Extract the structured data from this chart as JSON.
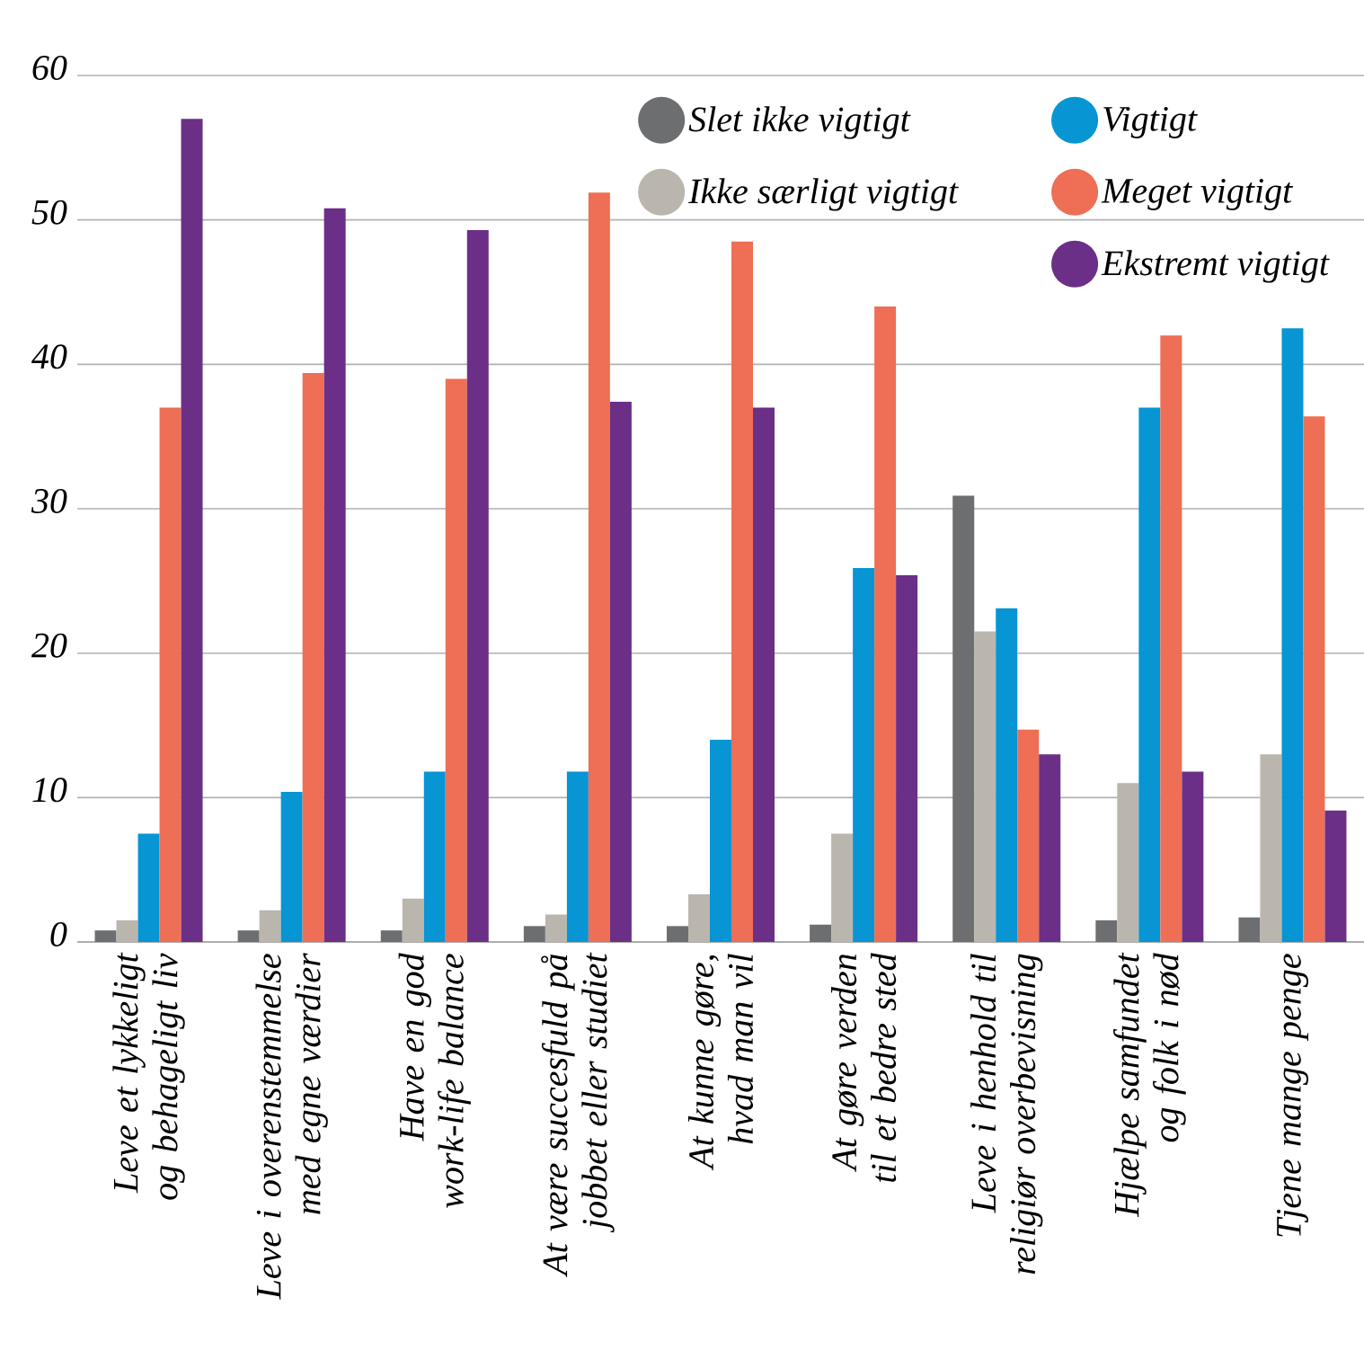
{
  "chart_data": {
    "type": "bar",
    "categories": [
      "Leve et lykkeligt og behageligt liv",
      "Leve i overenstemmelse med egne værdier",
      "Have en god work-life balance",
      "At være succesfuld på jobbet eller studiet",
      "At kunne gøre, hvad man vil",
      "At gøre verden til et bedre sted",
      "Leve i henhold til religiør overbevisning",
      "Hjælpe samfundet og folk i nød",
      "Tjene mange penge"
    ],
    "series": [
      {
        "name": "Slet ikke vigtigt",
        "color": "#6d6e70",
        "values": [
          0.8,
          0.8,
          0.8,
          1.1,
          1.1,
          1.2,
          30.9,
          1.5,
          1.7
        ]
      },
      {
        "name": "Ikke særligt vigtigt",
        "color": "#bab6ae",
        "values": [
          1.5,
          2.2,
          3.0,
          1.9,
          3.3,
          7.5,
          21.5,
          11.0,
          13.0
        ]
      },
      {
        "name": "Vigtigt",
        "color": "#0795d4",
        "values": [
          7.5,
          10.4,
          11.8,
          11.8,
          14.0,
          25.9,
          23.1,
          37.0,
          42.5
        ]
      },
      {
        "name": "Meget vigtigt",
        "color": "#ee6f55",
        "values": [
          37.0,
          39.4,
          39.0,
          51.9,
          48.5,
          44.0,
          14.7,
          42.0,
          36.4
        ]
      },
      {
        "name": "Ekstremt vigtigt",
        "color": "#6b2f87",
        "values": [
          57.0,
          50.8,
          49.3,
          37.4,
          37.0,
          25.4,
          13.0,
          11.8,
          9.1
        ]
      }
    ],
    "ylim": [
      0,
      60
    ],
    "yticks": [
      0,
      10,
      20,
      30,
      40,
      50,
      60
    ],
    "grid": "y",
    "legend": "top right"
  }
}
